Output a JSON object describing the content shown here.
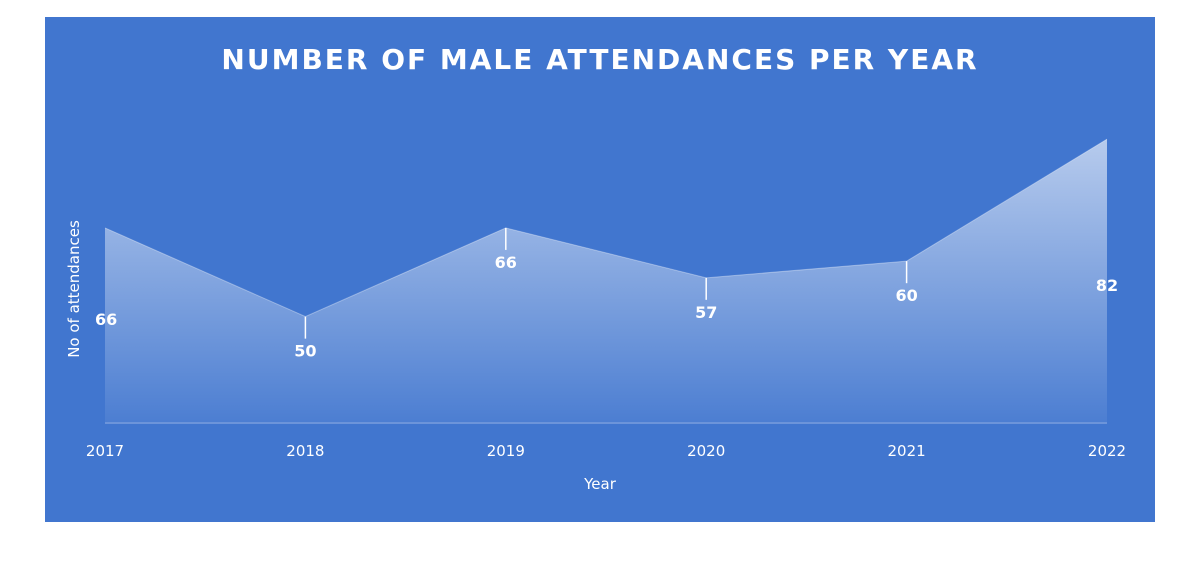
{
  "colors": {
    "panel": "#4176cf",
    "area_top": "#ffffff",
    "text": "#ffffff"
  },
  "chart_data": {
    "type": "area",
    "title": "NUMBER OF MALE ATTENDANCES PER YEAR",
    "xlabel": "Year",
    "ylabel": "No of attendances",
    "categories": [
      "2017",
      "2018",
      "2019",
      "2020",
      "2021",
      "2022"
    ],
    "series": [
      {
        "name": "Male attendances",
        "values": [
          66,
          50,
          66,
          57,
          60,
          82
        ]
      }
    ],
    "data_labels": [
      "66",
      "50",
      "66",
      "57",
      "60",
      "82"
    ],
    "ylim": [
      31,
      86
    ],
    "grid": false,
    "legend": "none"
  }
}
